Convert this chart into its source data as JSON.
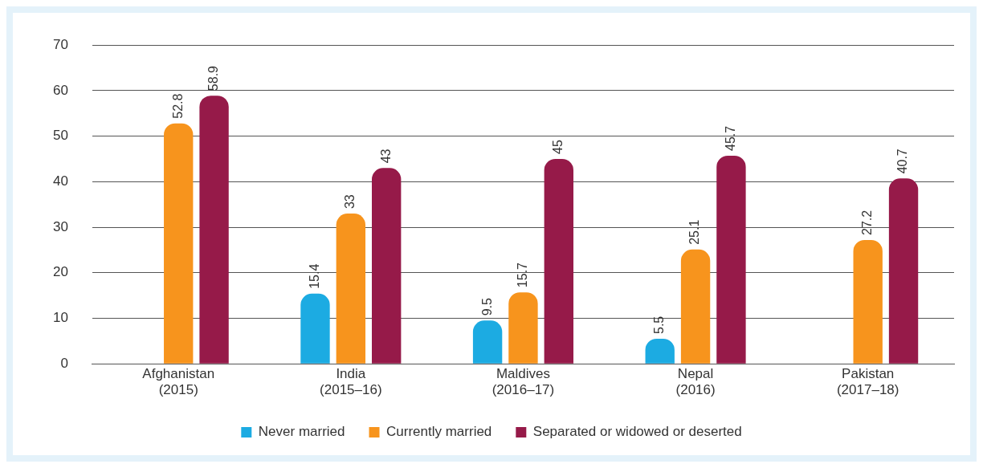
{
  "chart_data": {
    "type": "bar",
    "categories": [
      "Afghanistan\n(2015)",
      "India\n(2015–16)",
      "Maldives\n(2016–17)",
      "Nepal\n(2016)",
      "Pakistan\n(2017–18)"
    ],
    "series": [
      {
        "name": "Never married",
        "color": "#1cabe2",
        "values": [
          null,
          15.4,
          9.5,
          5.5,
          null
        ]
      },
      {
        "name": "Currently married",
        "color": "#f7941d",
        "values": [
          52.8,
          33,
          15.7,
          25.1,
          27.2
        ]
      },
      {
        "name": "Separated or widowed or deserted",
        "color": "#961a49",
        "values": [
          58.9,
          43,
          45,
          45.7,
          40.7
        ]
      }
    ],
    "ylim": [
      0,
      70
    ],
    "yticks": [
      0,
      10,
      20,
      30,
      40,
      50,
      60,
      70
    ],
    "grid": "y",
    "legend": "bottom",
    "data_labels": true
  }
}
